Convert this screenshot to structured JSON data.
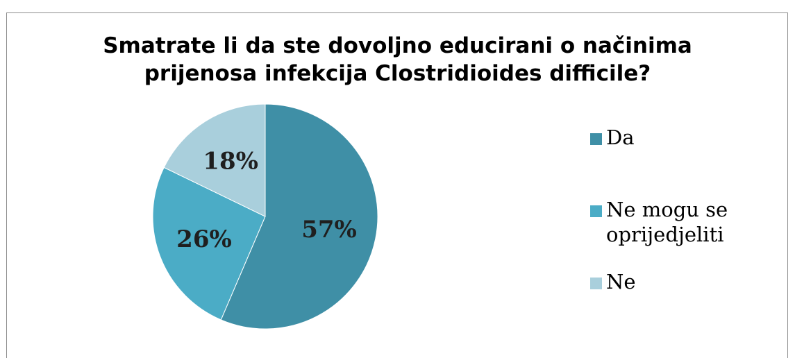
{
  "chart_data": {
    "type": "pie",
    "title_lines": [
      "Smatrate li da ste dovoljno educirani o načinima",
      "prijenosa infekcija Clostridioides difficile?"
    ],
    "slices": [
      {
        "label": "Da",
        "value": 57,
        "value_label": "57%",
        "color": "#3F8FA6"
      },
      {
        "label": "Ne mogu se\noprijedjeliti",
        "value": 26,
        "value_label": "26%",
        "color": "#4BACC6"
      },
      {
        "label": "Ne",
        "value": 18,
        "value_label": "18%",
        "color": "#A9CFDC"
      }
    ],
    "start_angle_deg": 0,
    "direction": "clockwise",
    "legend_position": "right",
    "label_color": "#1F1F1F"
  }
}
